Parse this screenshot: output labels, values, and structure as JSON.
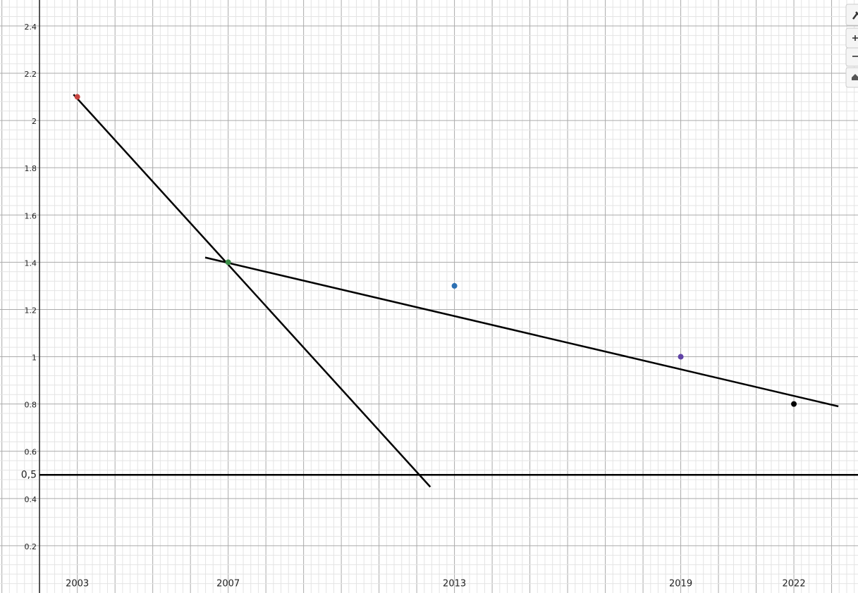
{
  "chart_data": {
    "type": "scatter",
    "x": [
      2003,
      2007,
      2013,
      2019,
      2022
    ],
    "values": [
      2.1,
      1.4,
      1.3,
      1.0,
      0.8
    ],
    "colors": [
      "#c74440",
      "#388c46",
      "#2d70b3",
      "#6042a6",
      "#000000"
    ],
    "segments": [
      {
        "x": [
          2002.9,
          2012.36
        ],
        "values": [
          2.11,
          0.449
        ]
      },
      {
        "x": [
          2006.39,
          2023.18
        ],
        "values": [
          1.42,
          0.79
        ]
      }
    ],
    "hlines": [
      0.5
    ],
    "xlim": [
      2000.95,
      2023.7
    ],
    "ylim": [
      0,
      2.51
    ],
    "xticks": [
      2003,
      2007,
      2013,
      2019,
      2022
    ],
    "yticks": [
      0.2,
      {
        "value": 0.4,
        "label": "0.4"
      },
      {
        "value": 0.5,
        "label": "0,5"
      },
      {
        "value": 0.6,
        "label": "0.6"
      },
      {
        "value": 0.8,
        "label": "0.8"
      },
      1,
      1.2,
      1.4,
      1.6,
      1.8,
      2,
      2.2,
      2.4
    ],
    "grid": true
  }
}
